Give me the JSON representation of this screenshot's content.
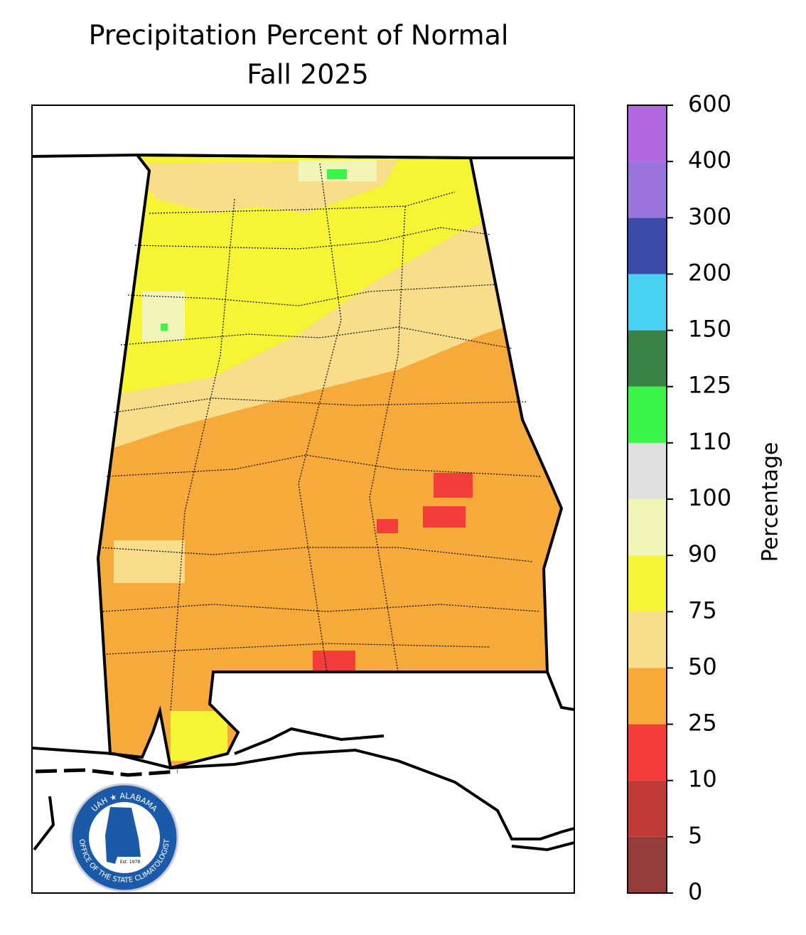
{
  "chart_data": {
    "type": "map",
    "title": "Precipitation Percent of Normal",
    "subtitle": "Fall 2025",
    "colorbar": {
      "label": "Percentage",
      "ticks": [
        0,
        5,
        10,
        25,
        50,
        75,
        90,
        100,
        110,
        125,
        150,
        200,
        300,
        400,
        600
      ],
      "colors": [
        "#953d3b",
        "#c03a38",
        "#f33d3b",
        "#f6aa3a",
        "#f8dd8a",
        "#f5f536",
        "#f1f6b8",
        "#e0e0e0",
        "#3cf54b",
        "#3b8246",
        "#4ad2f4",
        "#3c4aa8",
        "#9a74dc",
        "#b168e1"
      ]
    },
    "logo": {
      "top": "UAH ★ ALABAMA",
      "bottom": "OFFICE OF THE STATE CLIMATOLOGIST",
      "est": "Est. 1978"
    }
  }
}
